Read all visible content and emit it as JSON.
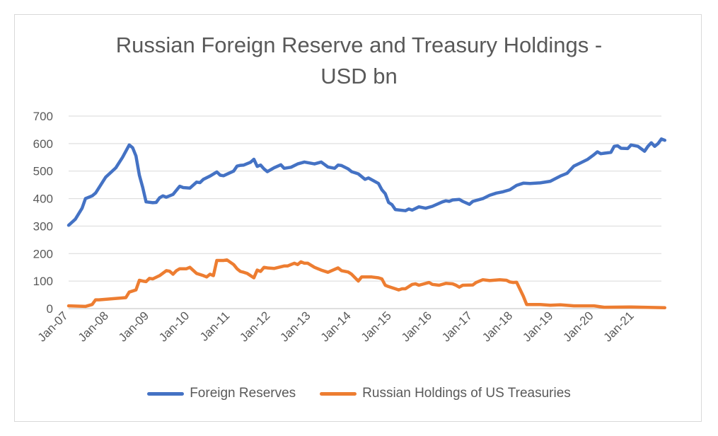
{
  "chart_data": {
    "type": "line",
    "title": "Russian Foreign Reserve and Treasury Holdings -\nUSD bn",
    "xlabel": "",
    "ylabel": "",
    "ylim": [
      0,
      700
    ],
    "yticks": [
      "0",
      "100",
      "200",
      "300",
      "400",
      "500",
      "600",
      "700"
    ],
    "x_start": "Jan-07",
    "x_end": "Sep-21",
    "xtick_labels": [
      "Jan-07",
      "Jan-08",
      "Jan-09",
      "Jan-10",
      "Jan-11",
      "Jan-12",
      "Jan-13",
      "Jan-14",
      "Jan-15",
      "Jan-16",
      "Jan-17",
      "Jan-18",
      "Jan-19",
      "Jan-20",
      "Jan-21"
    ],
    "grid": "horizontal",
    "legend_position": "bottom",
    "series": [
      {
        "name": "Foreign Reserves",
        "color": "#4472c4",
        "points": [
          [
            "Jan-07",
            303
          ],
          [
            "Mar-07",
            325
          ],
          [
            "May-07",
            365
          ],
          [
            "Jun-07",
            400
          ],
          [
            "Aug-07",
            410
          ],
          [
            "Sep-07",
            420
          ],
          [
            "Dec-07",
            478
          ],
          [
            "Mar-08",
            512
          ],
          [
            "May-08",
            550
          ],
          [
            "Jul-08",
            595
          ],
          [
            "Aug-08",
            585
          ],
          [
            "Sep-08",
            555
          ],
          [
            "Oct-08",
            485
          ],
          [
            "Nov-08",
            440
          ],
          [
            "Dec-08",
            388
          ],
          [
            "Feb-09",
            385
          ],
          [
            "Mar-09",
            386
          ],
          [
            "Apr-09",
            403
          ],
          [
            "May-09",
            410
          ],
          [
            "Jun-09",
            405
          ],
          [
            "Aug-09",
            415
          ],
          [
            "Oct-09",
            445
          ],
          [
            "Nov-09",
            440
          ],
          [
            "Jan-10",
            438
          ],
          [
            "Mar-10",
            460
          ],
          [
            "Apr-10",
            458
          ],
          [
            "May-10",
            470
          ],
          [
            "Jul-10",
            482
          ],
          [
            "Sep-10",
            497
          ],
          [
            "Oct-10",
            485
          ],
          [
            "Nov-10",
            483
          ],
          [
            "Feb-11",
            500
          ],
          [
            "Mar-11",
            518
          ],
          [
            "Apr-11",
            521
          ],
          [
            "May-11",
            522
          ],
          [
            "Jul-11",
            532
          ],
          [
            "Aug-11",
            543
          ],
          [
            "Sep-11",
            517
          ],
          [
            "Oct-11",
            522
          ],
          [
            "Nov-11",
            508
          ],
          [
            "Dec-11",
            498
          ],
          [
            "Feb-12",
            512
          ],
          [
            "Apr-12",
            523
          ],
          [
            "May-12",
            510
          ],
          [
            "Jul-12",
            514
          ],
          [
            "Sep-12",
            526
          ],
          [
            "Nov-12",
            533
          ],
          [
            "Feb-13",
            526
          ],
          [
            "Apr-13",
            533
          ],
          [
            "Jun-13",
            515
          ],
          [
            "Aug-13",
            510
          ],
          [
            "Sep-13",
            522
          ],
          [
            "Oct-13",
            520
          ],
          [
            "Dec-13",
            508
          ],
          [
            "Jan-14",
            498
          ],
          [
            "Mar-14",
            490
          ],
          [
            "May-14",
            470
          ],
          [
            "Jun-14",
            475
          ],
          [
            "Sep-14",
            455
          ],
          [
            "Oct-14",
            432
          ],
          [
            "Nov-14",
            418
          ],
          [
            "Dec-14",
            386
          ],
          [
            "Jan-15",
            378
          ],
          [
            "Feb-15",
            360
          ],
          [
            "May-15",
            356
          ],
          [
            "Jun-15",
            362
          ],
          [
            "Jul-15",
            358
          ],
          [
            "Sep-15",
            370
          ],
          [
            "Nov-15",
            365
          ],
          [
            "Jan-16",
            372
          ],
          [
            "Apr-16",
            388
          ],
          [
            "May-16",
            392
          ],
          [
            "Jun-16",
            390
          ],
          [
            "Jul-16",
            395
          ],
          [
            "Sep-16",
            397
          ],
          [
            "Oct-16",
            390
          ],
          [
            "Dec-16",
            379
          ],
          [
            "Jan-17",
            390
          ],
          [
            "Apr-17",
            400
          ],
          [
            "Jun-17",
            412
          ],
          [
            "Aug-17",
            420
          ],
          [
            "Oct-17",
            425
          ],
          [
            "Dec-17",
            432
          ],
          [
            "Feb-18",
            448
          ],
          [
            "Apr-18",
            456
          ],
          [
            "Jun-18",
            455
          ],
          [
            "Sep-18",
            457
          ],
          [
            "Dec-18",
            463
          ],
          [
            "Mar-19",
            482
          ],
          [
            "May-19",
            492
          ],
          [
            "Jul-19",
            518
          ],
          [
            "Sep-19",
            530
          ],
          [
            "Nov-19",
            542
          ],
          [
            "Jan-20",
            560
          ],
          [
            "Feb-20",
            570
          ],
          [
            "Mar-20",
            563
          ],
          [
            "Apr-20",
            565
          ],
          [
            "Jun-20",
            568
          ],
          [
            "Jul-20",
            590
          ],
          [
            "Aug-20",
            592
          ],
          [
            "Sep-20",
            583
          ],
          [
            "Nov-20",
            582
          ],
          [
            "Dec-20",
            595
          ],
          [
            "Feb-21",
            590
          ],
          [
            "Apr-21",
            572
          ],
          [
            "May-21",
            590
          ],
          [
            "Jun-21",
            603
          ],
          [
            "Jul-21",
            590
          ],
          [
            "Aug-21",
            600
          ],
          [
            "Sep-21",
            617
          ],
          [
            "Oct-21",
            612
          ]
        ]
      },
      {
        "name": "Russian Holdings of US Treasuries",
        "color": "#ed7d31",
        "points": [
          [
            "Jan-07",
            10
          ],
          [
            "Jun-07",
            8
          ],
          [
            "Aug-07",
            15
          ],
          [
            "Sep-07",
            32
          ],
          [
            "Oct-07",
            32
          ],
          [
            "Jun-08",
            40
          ],
          [
            "Jul-08",
            60
          ],
          [
            "Sep-08",
            68
          ],
          [
            "Oct-08",
            103
          ],
          [
            "Nov-08",
            100
          ],
          [
            "Dec-08",
            98
          ],
          [
            "Jan-09",
            110
          ],
          [
            "Feb-09",
            108
          ],
          [
            "Apr-09",
            120
          ],
          [
            "Jun-09",
            138
          ],
          [
            "Jul-09",
            136
          ],
          [
            "Aug-09",
            125
          ],
          [
            "Sep-09",
            138
          ],
          [
            "Oct-09",
            145
          ],
          [
            "Dec-09",
            145
          ],
          [
            "Jan-10",
            150
          ],
          [
            "Mar-10",
            128
          ],
          [
            "May-10",
            120
          ],
          [
            "Jun-10",
            115
          ],
          [
            "Jul-10",
            125
          ],
          [
            "Aug-10",
            120
          ],
          [
            "Sep-10",
            175
          ],
          [
            "Oct-10",
            175
          ],
          [
            "Nov-10",
            175
          ],
          [
            "Dec-10",
            177
          ],
          [
            "Feb-11",
            160
          ],
          [
            "Mar-11",
            145
          ],
          [
            "Apr-11",
            135
          ],
          [
            "May-11",
            132
          ],
          [
            "Jun-11",
            128
          ],
          [
            "Jul-11",
            120
          ],
          [
            "Aug-11",
            112
          ],
          [
            "Sep-11",
            140
          ],
          [
            "Oct-11",
            135
          ],
          [
            "Nov-11",
            150
          ],
          [
            "Dec-11",
            148
          ],
          [
            "Feb-12",
            146
          ],
          [
            "Apr-12",
            152
          ],
          [
            "May-12",
            155
          ],
          [
            "Jun-12",
            155
          ],
          [
            "Jul-12",
            160
          ],
          [
            "Aug-12",
            165
          ],
          [
            "Sep-12",
            160
          ],
          [
            "Oct-12",
            170
          ],
          [
            "Nov-12",
            165
          ],
          [
            "Dec-12",
            165
          ],
          [
            "Feb-13",
            150
          ],
          [
            "Apr-13",
            140
          ],
          [
            "Jun-13",
            132
          ],
          [
            "Sep-13",
            148
          ],
          [
            "Oct-13",
            138
          ],
          [
            "Dec-13",
            133
          ],
          [
            "Jan-14",
            125
          ],
          [
            "Mar-14",
            100
          ],
          [
            "Apr-14",
            115
          ],
          [
            "Jul-14",
            115
          ],
          [
            "Sep-14",
            112
          ],
          [
            "Oct-14",
            108
          ],
          [
            "Nov-14",
            85
          ],
          [
            "Dec-14",
            80
          ],
          [
            "Feb-15",
            72
          ],
          [
            "Mar-15",
            68
          ],
          [
            "Apr-15",
            72
          ],
          [
            "May-15",
            72
          ],
          [
            "Jul-15",
            88
          ],
          [
            "Aug-15",
            90
          ],
          [
            "Sep-15",
            85
          ],
          [
            "Dec-15",
            95
          ],
          [
            "Jan-16",
            88
          ],
          [
            "Mar-16",
            85
          ],
          [
            "May-16",
            92
          ],
          [
            "Jul-16",
            90
          ],
          [
            "Aug-16",
            85
          ],
          [
            "Sep-16",
            78
          ],
          [
            "Oct-16",
            85
          ],
          [
            "Jan-17",
            86
          ],
          [
            "Feb-17",
            95
          ],
          [
            "Apr-17",
            105
          ],
          [
            "Jun-17",
            102
          ],
          [
            "Sep-17",
            105
          ],
          [
            "Nov-17",
            103
          ],
          [
            "Dec-17",
            97
          ],
          [
            "Jan-18",
            95
          ],
          [
            "Feb-18",
            96
          ],
          [
            "Apr-18",
            45
          ],
          [
            "May-18",
            15
          ],
          [
            "Jul-18",
            15
          ],
          [
            "Sep-18",
            15
          ],
          [
            "Dec-18",
            12
          ],
          [
            "Mar-19",
            14
          ],
          [
            "Jul-19",
            10
          ],
          [
            "Jan-20",
            10
          ],
          [
            "Apr-20",
            5
          ],
          [
            "Dec-20",
            6
          ],
          [
            "Oct-21",
            3
          ]
        ]
      }
    ]
  }
}
